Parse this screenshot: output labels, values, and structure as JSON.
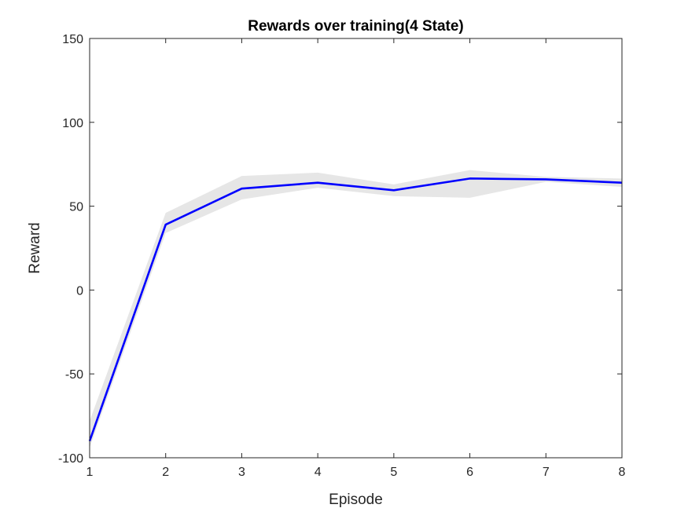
{
  "chart_data": {
    "type": "line",
    "title": "Rewards over training(4 State)",
    "xlabel": "Episode",
    "ylabel": "Reward",
    "xlim": [
      1,
      8
    ],
    "ylim": [
      -100,
      150
    ],
    "xticks": [
      1,
      2,
      3,
      4,
      5,
      6,
      7,
      8
    ],
    "yticks": [
      -100,
      -50,
      0,
      50,
      100,
      150
    ],
    "grid": false,
    "legend": "none",
    "x": [
      1,
      2,
      3,
      4,
      5,
      6,
      7,
      8
    ],
    "series": [
      {
        "values": [
          -90,
          39,
          60.5,
          64,
          59.5,
          66.5,
          66,
          64
        ],
        "color": "#0000ff",
        "band_upper": [
          -78,
          46,
          68,
          70,
          63,
          71.5,
          67.5,
          66.5
        ],
        "band_lower": [
          -94,
          34,
          54,
          61,
          56,
          55,
          64.5,
          61.5
        ],
        "band_color": "#e6e6e6"
      }
    ]
  }
}
